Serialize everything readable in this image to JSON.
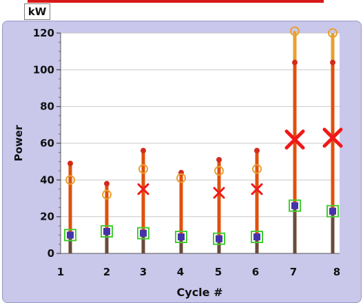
{
  "unit_label": "kW",
  "colors": {
    "frame": "#c9c7ea",
    "whisker": "#e0500c",
    "whisker_dark": "#6a4a3a",
    "max_dot": "#d42a1a",
    "mean_circle": "#e8a030",
    "x_mark": "#f01818",
    "min_square_outline": "#44cc33",
    "min_square_fill": "#4433aa",
    "red_strip": "#d81818"
  },
  "chart_data": {
    "type": "scatter",
    "xlabel": "Cycle #",
    "ylabel": "Power",
    "ylim": [
      0,
      120
    ],
    "y_ticks": [
      0,
      20,
      40,
      60,
      80,
      100,
      120
    ],
    "x_ticks": [
      1,
      2,
      3,
      4,
      5,
      6,
      7,
      8
    ],
    "grid": true,
    "cycles": [
      1,
      2,
      3,
      4,
      5,
      6,
      7,
      8
    ],
    "max": [
      49,
      38,
      56,
      44,
      51,
      56,
      104,
      104
    ],
    "mean_circle": [
      40,
      32,
      46,
      41,
      45,
      46,
      121,
      120
    ],
    "x_marker": [
      null,
      null,
      35,
      null,
      33,
      35,
      62,
      63
    ],
    "min_square": [
      10,
      12,
      11,
      9,
      8,
      9,
      26,
      23
    ]
  }
}
